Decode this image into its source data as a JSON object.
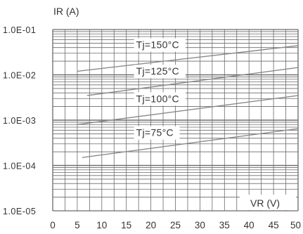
{
  "chart_data": {
    "type": "line",
    "ylabel": "IR (A)",
    "xlabel": "VR (V)",
    "x_ticks": [
      "0",
      "5",
      "10",
      "15",
      "20",
      "25",
      "30",
      "35",
      "40",
      "45",
      "50"
    ],
    "y_ticks": [
      "1.0E-05",
      "1.0E-04",
      "1.0E-03",
      "1.0E-02",
      "1.0E-01"
    ],
    "xlim": [
      0,
      50
    ],
    "ylim": [
      1e-05,
      0.1
    ],
    "y_scale": "log",
    "grid": true,
    "series": [
      {
        "name": "Tj=150°C",
        "x": [
          5,
          50
        ],
        "y": [
          0.012,
          0.044
        ]
      },
      {
        "name": "Tj=125°C",
        "x": [
          7,
          50
        ],
        "y": [
          0.0035,
          0.0145
        ]
      },
      {
        "name": "Tj=100°C",
        "x": [
          5,
          50
        ],
        "y": [
          0.0008,
          0.0035
        ]
      },
      {
        "name": "Tj=75°C",
        "x": [
          6,
          50
        ],
        "y": [
          0.00015,
          0.00065
        ]
      }
    ],
    "annotations": [
      {
        "text": "Tj=150°C",
        "x": 17,
        "y": 0.048
      },
      {
        "text": "Tj=125°C",
        "x": 17,
        "y": 0.0125
      },
      {
        "text": "Tj=100°C",
        "x": 17,
        "y": 0.0031
      },
      {
        "text": "Tj=75°C",
        "x": 17,
        "y": 0.00055
      }
    ],
    "colors": {
      "grid": "#6a6a6a",
      "curve": "#8a8a8a",
      "text": "#333333"
    }
  }
}
